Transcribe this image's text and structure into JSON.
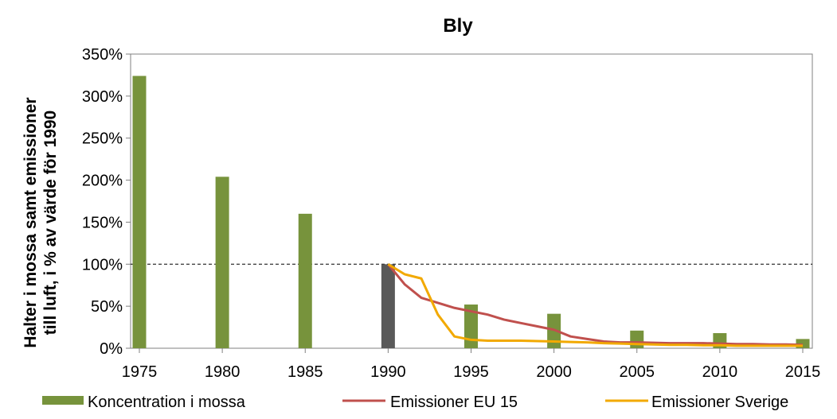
{
  "chart_data": {
    "type": "bar",
    "title": "Bly",
    "ylabel_lines": [
      "Halter i mossa samt emissioner",
      "till luft, i % av värde för 1990"
    ],
    "xlim": [
      1975,
      2015
    ],
    "ylim": [
      0,
      350
    ],
    "x_ticks": [
      "1975",
      "1980",
      "1985",
      "1990",
      "1995",
      "2000",
      "2005",
      "2010",
      "2015"
    ],
    "y_ticks": [
      "0%",
      "50%",
      "100%",
      "150%",
      "200%",
      "250%",
      "300%",
      "350%"
    ],
    "reference_line": 100,
    "legend_position": "bottom",
    "bars": {
      "name": "Koncentration i mossa",
      "color": "#77933C",
      "highlight_color": "#595959",
      "highlight_year": 1990,
      "x": [
        1975,
        1980,
        1985,
        1990,
        1995,
        2000,
        2005,
        2010,
        2015
      ],
      "values": [
        324,
        204,
        160,
        100,
        52,
        41,
        21,
        18,
        11
      ]
    },
    "series": [
      {
        "name": "Emissioner EU 15",
        "color": "#C0504D",
        "x": [
          1990,
          1991,
          1992,
          1993,
          1994,
          1995,
          1996,
          1997,
          1998,
          1999,
          2000,
          2001,
          2002,
          2003,
          2004,
          2005,
          2006,
          2007,
          2008,
          2009,
          2010,
          2011,
          2012,
          2013,
          2014,
          2015
        ],
        "values": [
          100,
          76,
          60,
          54,
          48,
          44,
          40,
          34,
          30,
          26,
          22,
          14,
          11,
          8,
          7,
          7,
          6.5,
          6,
          6,
          6,
          5.5,
          5,
          5,
          4.5,
          4.5,
          4
        ]
      },
      {
        "name": "Emissioner Sverige",
        "color": "#F2A900",
        "x": [
          1990,
          1991,
          1992,
          1993,
          1994,
          1995,
          1996,
          1997,
          1998,
          1999,
          2000,
          2001,
          2002,
          2003,
          2004,
          2005,
          2006,
          2007,
          2008,
          2009,
          2010,
          2011,
          2012,
          2013,
          2014,
          2015
        ],
        "values": [
          100,
          88,
          83,
          40,
          14,
          10,
          9,
          9,
          9,
          8.5,
          8,
          7.5,
          7,
          6,
          5.5,
          5,
          4.5,
          4,
          4,
          3.5,
          3.5,
          3,
          3,
          3,
          3,
          3
        ]
      }
    ]
  }
}
